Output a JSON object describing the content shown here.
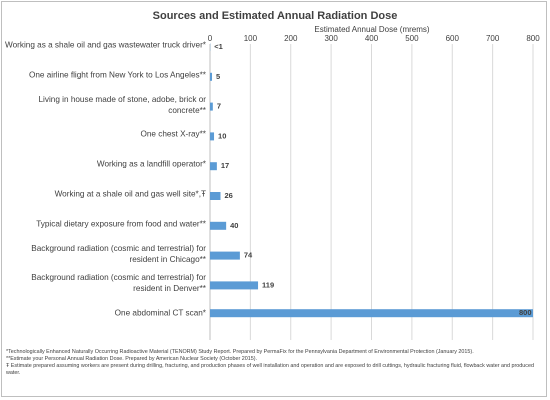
{
  "chart_data": {
    "type": "bar",
    "orientation": "horizontal",
    "title": "Sources and Estimated Annual Radiation Dose",
    "x_label": "Estimated Annual Dose (mrems)",
    "categories": [
      "Working as a shale oil and gas wastewater truck driver*",
      "One airline flight from New York to Los Angeles**",
      "Living in house made of stone, adobe, brick or concrete**",
      "One chest X-ray**",
      "Working as a landfill operator*",
      "Working at a shale oil and gas well site*,Ŧ",
      "Typical dietary exposure from food and water**",
      "Background radiation (cosmic and terrestrial) for resident in Chicago**",
      "Background radiation (cosmic and terrestrial) for resident in Denver**",
      "One abdominal CT scan*"
    ],
    "values": [
      0.5,
      5,
      7,
      10,
      17,
      26,
      40,
      74,
      119,
      800
    ],
    "value_labels": [
      "<1",
      "5",
      "7",
      "10",
      "17",
      "26",
      "40",
      "74",
      "119",
      "800"
    ],
    "color": "#5b9bd5",
    "xlim": [
      0,
      800
    ],
    "xticks": [
      0,
      100,
      200,
      300,
      400,
      500,
      600,
      700,
      800
    ],
    "grid": true,
    "footnotes": [
      "*Technologically Enhanced Naturally Occurring Radioactive Material (TENORM) Study Report.  Prepared by PermaFix for the Pennsylvania Department of Environmental Protection (January 2015).",
      "**Estimate your Personal Annual Radiation Dose.  Prepared by American Nuclear Society (October 2015).",
      "Ŧ Estimate prepared assuming workers are present during drilling, fracturing, and production phases of well installation and operation and are exposed to drill cuttings, hydraulic fracturing fluid, flowback water and produced water."
    ]
  }
}
